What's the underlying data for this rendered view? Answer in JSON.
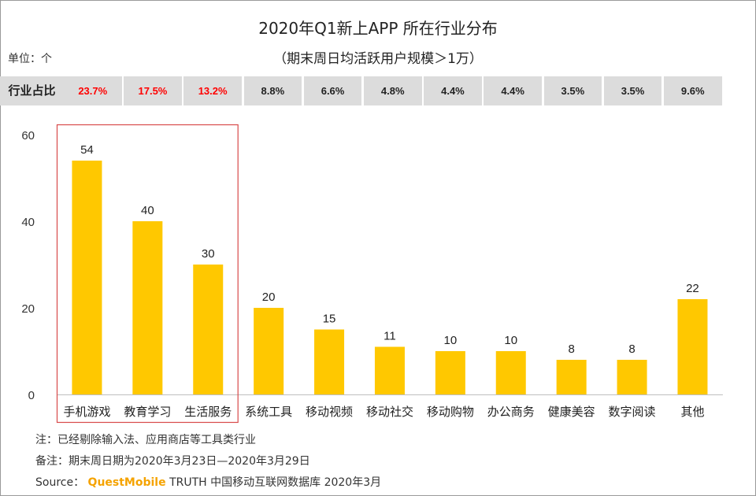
{
  "chart_data": {
    "type": "bar",
    "title": "2020年Q1新上APP 所在行业分布",
    "subtitle": "（期末周日均活跃用户规模＞1万）",
    "unit_label": "单位：个",
    "categories": [
      "手机游戏",
      "教育学习",
      "生活服务",
      "系统工具",
      "移动视频",
      "移动社交",
      "移动购物",
      "办公商务",
      "健康美容",
      "数字阅读",
      "其他"
    ],
    "values": [
      54,
      40,
      30,
      20,
      15,
      11,
      10,
      10,
      8,
      8,
      22
    ],
    "ylim": [
      0,
      60
    ],
    "yticks": [
      0,
      20,
      40,
      60
    ],
    "share_row": {
      "label": "行业占比",
      "values": [
        "23.7%",
        "17.5%",
        "13.2%",
        "8.8%",
        "6.6%",
        "4.8%",
        "4.4%",
        "4.4%",
        "3.5%",
        "3.5%",
        "9.6%"
      ],
      "highlight_count": 3
    },
    "highlight_group": [
      "手机游戏",
      "教育学习",
      "生活服务"
    ],
    "grid": false,
    "legend": "none"
  },
  "notes": {
    "note1": "注：已经剔除输入法、应用商店等工具类行业",
    "note2": "备注：期末周日期为2020年3月23日—2020年3月29日",
    "source_prefix": "Source：",
    "source_brand": "QuestMobile",
    "source_suffix": " TRUTH 中国移动互联网数据库 2020年3月"
  },
  "colors": {
    "bar": "#ffc800",
    "highlight_text": "#ff0000",
    "normal_text": "#222222",
    "highlight_box": "#d84a4a",
    "share_bg": "#dcdcdc",
    "axis": "#bfbfbf"
  }
}
